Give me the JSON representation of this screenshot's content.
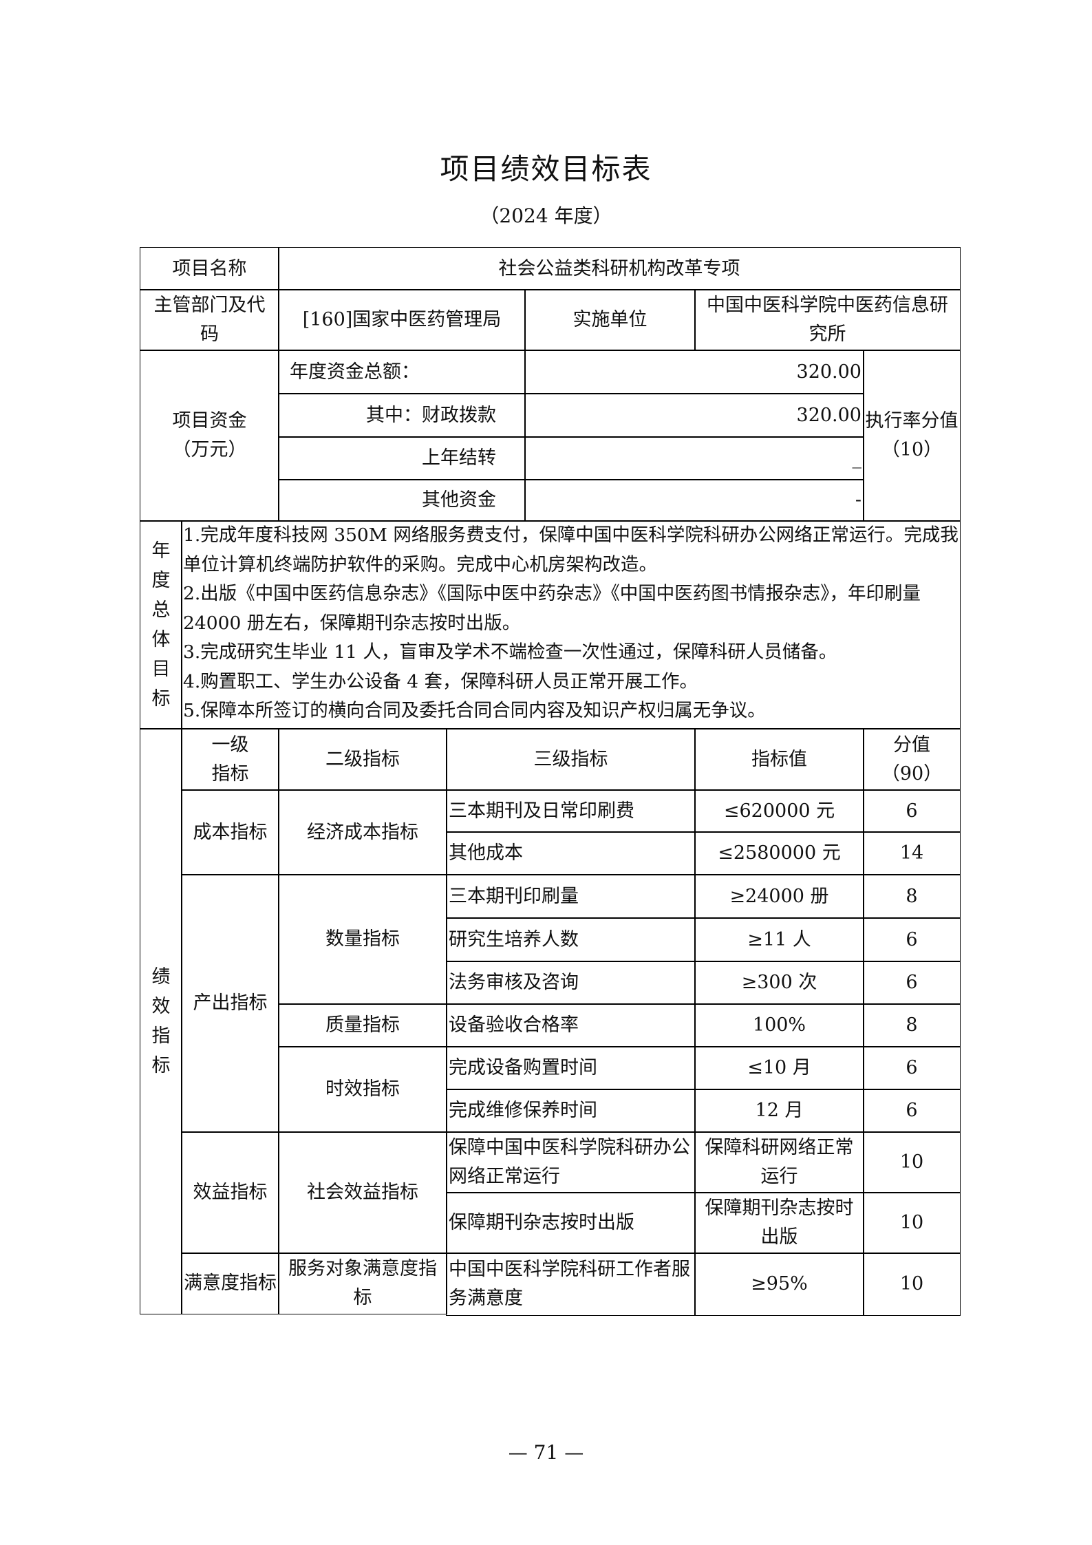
{
  "title": "项目绩效目标表",
  "subtitle": "（2024 年度）",
  "project_name_label": "项目名称",
  "project_name": "社会公益类科研机构改革专项",
  "dept_label": "主管部门及代码",
  "dept": "[160]国家中医药管理局",
  "impl_label": "实施单位",
  "impl": "中国中医科学院中医药信息研究所",
  "funds": {
    "label": "项目资金（万元）",
    "rows": [
      {
        "label": "年度资金总额：",
        "value": "320.00"
      },
      {
        "label": "其中：财政拨款",
        "value": "320.00"
      },
      {
        "label": "上年结转",
        "value": "_"
      },
      {
        "label": "其他资金",
        "value": "-"
      }
    ],
    "rate_label": "执行率分值（10）"
  },
  "goals": {
    "label": "年度总体目标",
    "items": [
      "1.完成年度科技网 350M 网络服务费支付，保障中国中医科学院科研办公网络正常运行。完成我单位计算机终端防护软件的采购。完成中心机房架构改造。",
      "2.出版《中国中医药信息杂志》《国际中医中药杂志》《中国中医药图书情报杂志》，年印刷量 24000 册左右，保障期刊杂志按时出版。",
      "3.完成研究生毕业 11 人，盲审及学术不端检查一次性通过，保障科研人员储备。",
      "4.购置职工、学生办公设备 4 套，保障科研人员正常开展工作。",
      "5.保障本所签订的横向合同及委托合同合同内容及知识产权归属无争议。"
    ]
  },
  "perf": {
    "label": "绩效指标",
    "headers": [
      "一级指标",
      "二级指标",
      "三级指标",
      "指标值",
      "分值（90）"
    ],
    "level1": [
      "成本指标",
      "产出指标",
      "效益指标",
      "满意度指标"
    ],
    "level2": [
      "经济成本指标",
      "数量指标",
      "质量指标",
      "时效指标",
      "社会效益指标",
      "服务对象满意度指标"
    ],
    "rows": [
      {
        "name": "三本期刊及日常印刷费",
        "value": "≤620000 元",
        "score": "6"
      },
      {
        "name": "其他成本",
        "value": "≤2580000 元",
        "score": "14"
      },
      {
        "name": "三本期刊印刷量",
        "value": "≥24000 册",
        "score": "8"
      },
      {
        "name": "研究生培养人数",
        "value": "≥11 人",
        "score": "6"
      },
      {
        "name": "法务审核及咨询",
        "value": "≥300 次",
        "score": "6"
      },
      {
        "name": "设备验收合格率",
        "value": "100%",
        "score": "8"
      },
      {
        "name": "完成设备购置时间",
        "value": "≤10 月",
        "score": "6"
      },
      {
        "name": "完成维修保养时间",
        "value": "12 月",
        "score": "6"
      },
      {
        "name": "保障中国中医科学院科研办公网络正常运行",
        "value": "保障科研网络正常运行",
        "score": "10"
      },
      {
        "name": "保障期刊杂志按时出版",
        "value": "保障期刊杂志按时出版",
        "score": "10"
      },
      {
        "name": "中国中医科学院科研工作者服务满意度",
        "value": "≥95%",
        "score": "10"
      }
    ]
  },
  "page_number": "— 71 —"
}
